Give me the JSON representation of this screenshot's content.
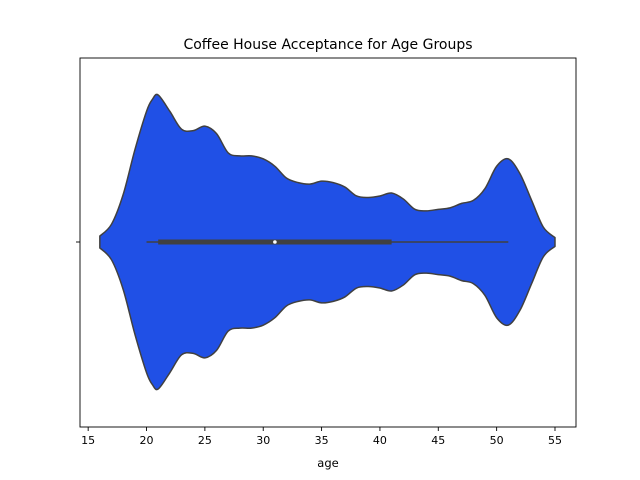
{
  "chart_data": {
    "type": "violin",
    "title": "Coffee House Acceptance for Age Groups",
    "xlabel": "age",
    "ylabel": "",
    "xlim": [
      14.3,
      56.8
    ],
    "xticks": [
      15,
      20,
      25,
      30,
      35,
      40,
      45,
      50,
      55
    ],
    "colors": {
      "violin_fill": "#2050e6",
      "violin_edge": "#404040",
      "box": "#404040",
      "median": "#ffffff"
    },
    "grid": false,
    "density": {
      "x": [
        16,
        17,
        18,
        19,
        20,
        20.5,
        21,
        22,
        23,
        24,
        25,
        26,
        27,
        28,
        29,
        30,
        31,
        32,
        33,
        34,
        35,
        36,
        37,
        38,
        39,
        40,
        41,
        42,
        43,
        44,
        45,
        46,
        47,
        48,
        49,
        50,
        51,
        52,
        53,
        54,
        55
      ],
      "value": [
        0.04,
        0.12,
        0.32,
        0.62,
        0.88,
        0.96,
        0.99,
        0.88,
        0.76,
        0.75,
        0.78,
        0.73,
        0.6,
        0.58,
        0.58,
        0.56,
        0.51,
        0.43,
        0.4,
        0.39,
        0.41,
        0.4,
        0.37,
        0.31,
        0.3,
        0.31,
        0.33,
        0.29,
        0.22,
        0.21,
        0.22,
        0.23,
        0.26,
        0.28,
        0.36,
        0.51,
        0.56,
        0.46,
        0.28,
        0.1,
        0.03
      ]
    },
    "box": {
      "whisker_low": 20,
      "q1": 21,
      "median": 31,
      "q3": 41,
      "whisker_high": 51
    }
  }
}
